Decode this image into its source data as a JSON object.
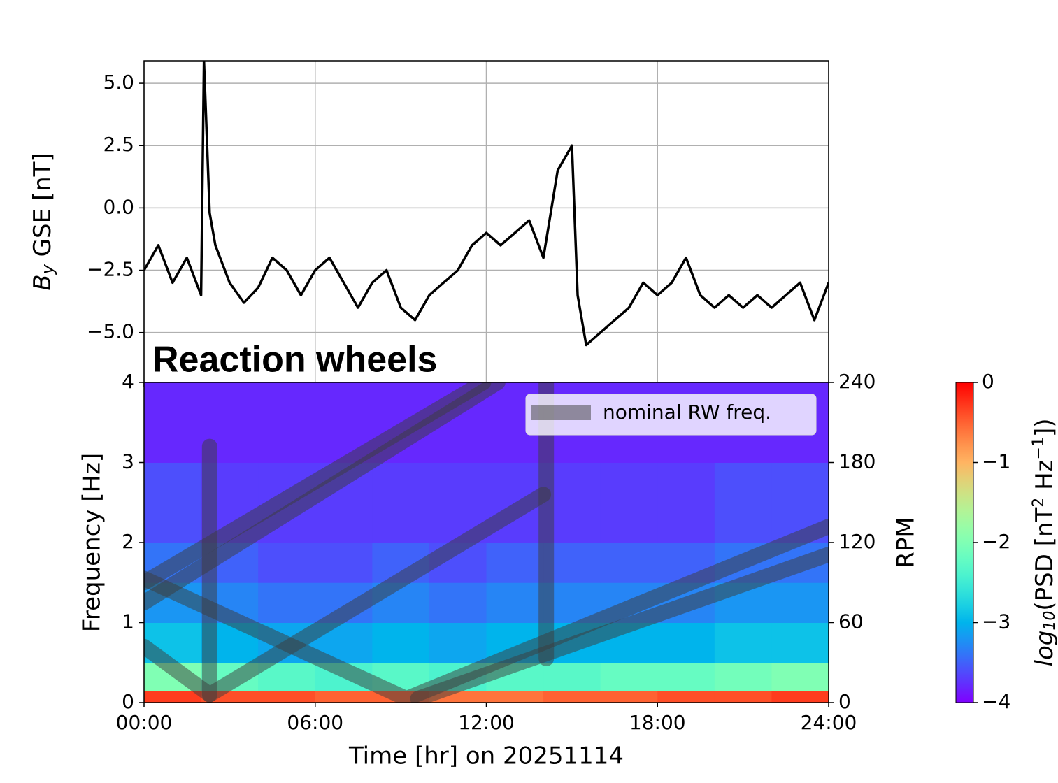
{
  "chart_data": [
    {
      "type": "line",
      "y_label": {
        "symbol": "B",
        "subscript": "y",
        "text": " GSE [nT]"
      },
      "x": [
        0,
        0.5,
        1,
        1.5,
        2,
        2.1,
        2.3,
        2.5,
        3,
        3.5,
        4,
        4.5,
        5,
        5.5,
        6,
        6.5,
        7,
        7.5,
        8,
        8.5,
        9,
        9.5,
        10,
        10.5,
        11,
        11.5,
        12,
        12.5,
        13,
        13.5,
        14,
        14.5,
        15,
        15.2,
        15.5,
        16,
        16.5,
        17,
        17.5,
        18,
        18.5,
        19,
        19.5,
        20,
        20.5,
        21,
        21.5,
        22,
        22.5,
        23,
        23.5,
        24
      ],
      "values": [
        -2.5,
        -1.5,
        -3.0,
        -2.0,
        -3.5,
        5.9,
        -0.2,
        -1.5,
        -3.0,
        -3.8,
        -3.2,
        -2.0,
        -2.5,
        -3.5,
        -2.5,
        -2.0,
        -3.0,
        -4.0,
        -3.0,
        -2.5,
        -4.0,
        -4.5,
        -3.5,
        -3.0,
        -2.5,
        -1.5,
        -1.0,
        -1.5,
        -1.0,
        -0.5,
        -2.0,
        1.5,
        2.5,
        -3.5,
        -5.5,
        -5.0,
        -4.5,
        -4.0,
        -3.0,
        -3.5,
        -3.0,
        -2.0,
        -3.5,
        -4.0,
        -3.5,
        -4.0,
        -3.5,
        -4.0,
        -3.5,
        -3.0,
        -4.5,
        -3.0
      ],
      "color": "#000000",
      "xlim": [
        0,
        24
      ],
      "ylim": [
        -7.0,
        5.9
      ],
      "xticks": [
        0,
        6,
        12,
        18,
        24
      ],
      "yticks": [
        {
          "value": 5,
          "label": "5.0"
        },
        {
          "value": 2.5,
          "label": "2.5"
        },
        {
          "value": 0,
          "label": "0.0"
        },
        {
          "value": -2.5,
          "label": "−2.5"
        },
        {
          "value": -5,
          "label": "−5.0"
        }
      ],
      "grid": true,
      "annotation": "Reaction wheels",
      "annotation_color": "#9b2a9b"
    },
    {
      "type": "heatmap",
      "x_label": "Time [hr] on 20251114",
      "y_label": "Frequency [Hz]",
      "y2_label": "RPM",
      "xlim": [
        0,
        24
      ],
      "ylim": [
        0,
        4
      ],
      "y2lim": [
        0,
        240
      ],
      "xticks": [
        {
          "value": 0,
          "label": "00:00"
        },
        {
          "value": 6,
          "label": "06:00"
        },
        {
          "value": 12,
          "label": "12:00"
        },
        {
          "value": 18,
          "label": "18:00"
        },
        {
          "value": 24,
          "label": "24:00"
        }
      ],
      "yticks": [
        0,
        1,
        2,
        3,
        4
      ],
      "y2ticks": [
        0,
        60,
        120,
        180,
        240
      ],
      "x_edges": [
        0,
        2,
        4,
        6,
        8,
        10,
        12,
        14,
        16,
        18,
        20,
        22,
        24
      ],
      "y_edges": [
        0,
        0.15,
        0.5,
        1,
        1.5,
        2,
        3,
        4
      ],
      "values": [
        [
          -0.3,
          -0.4,
          -0.4,
          -0.5,
          -0.5,
          -0.6,
          -0.6,
          -0.5,
          -0.5,
          -0.4,
          -0.4,
          -0.3
        ],
        [
          -2.0,
          -2.2,
          -2.3,
          -2.4,
          -2.3,
          -2.4,
          -2.3,
          -2.3,
          -2.2,
          -2.2,
          -2.1,
          -2.0
        ],
        [
          -2.9,
          -3.0,
          -3.1,
          -3.1,
          -3.0,
          -3.1,
          -3.0,
          -3.0,
          -3.0,
          -3.0,
          -2.9,
          -2.9
        ],
        [
          -3.2,
          -3.3,
          -3.4,
          -3.4,
          -3.3,
          -3.4,
          -3.3,
          -3.3,
          -3.3,
          -3.3,
          -3.2,
          -3.2
        ],
        [
          -3.4,
          -3.5,
          -3.6,
          -3.6,
          -3.5,
          -3.6,
          -3.5,
          -3.5,
          -3.5,
          -3.5,
          -3.4,
          -3.4
        ],
        [
          -3.6,
          -3.7,
          -3.7,
          -3.7,
          -3.7,
          -3.7,
          -3.7,
          -3.7,
          -3.7,
          -3.7,
          -3.6,
          -3.6
        ],
        [
          -3.8,
          -3.8,
          -3.8,
          -3.8,
          -3.8,
          -3.8,
          -3.8,
          -3.8,
          -3.8,
          -3.8,
          -3.8,
          -3.8
        ]
      ],
      "colormap": "rainbow",
      "clim": [
        -4,
        0
      ],
      "colorbar_ticks": [
        0,
        {
          "value": -1,
          "label": "−1"
        },
        {
          "value": -2,
          "label": "−2"
        },
        {
          "value": -3,
          "label": "−3"
        },
        {
          "value": -4,
          "label": "−4"
        }
      ],
      "colorbar_label": {
        "base": "log",
        "sub": "10",
        "open": "(PSD [nT",
        "sup1": "2",
        "mid": " Hz",
        "sup2": "−1",
        "close": "])"
      },
      "series": [
        {
          "name": "nominal RW freq.",
          "color": "rgba(60,60,60,0.5)",
          "x": [
            0,
            11.9,
            null,
            0,
            12.4,
            null,
            0,
            9.2,
            24,
            null,
            0,
            2.3,
            14.0,
            null,
            9.6,
            24,
            null,
            14.1,
            14.1,
            null,
            2.3,
            2.3
          ],
          "values": [
            1.5,
            4.0,
            null,
            1.25,
            4.0,
            null,
            1.55,
            0.05,
            2.2,
            null,
            0.7,
            0.1,
            2.6,
            null,
            0.05,
            1.85,
            null,
            0.55,
            4.0,
            null,
            0.1,
            3.2
          ]
        }
      ],
      "legend": "upper right",
      "grid": false
    }
  ]
}
